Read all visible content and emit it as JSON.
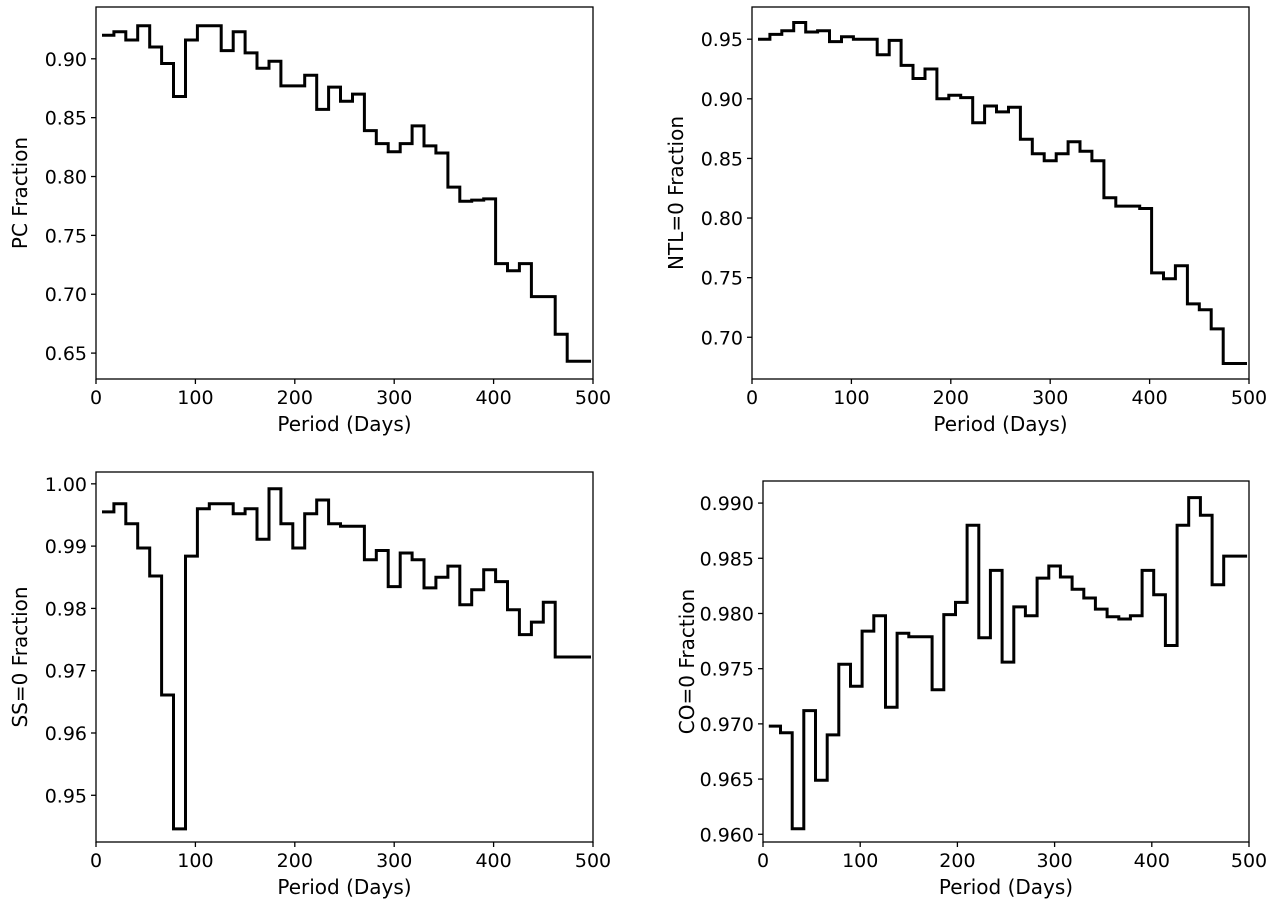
{
  "chart_data": [
    {
      "type": "line",
      "style": "step",
      "xlabel": "Period (Days)",
      "ylabel": "PC Fraction",
      "xlim": [
        0,
        500
      ],
      "ylim": [
        0.628,
        0.944
      ],
      "xticks": [
        "0",
        "100",
        "200",
        "300",
        "400",
        "500"
      ],
      "yticks": [
        "0.65",
        "0.70",
        "0.75",
        "0.80",
        "0.85",
        "0.90"
      ],
      "bin_edges": [
        6,
        18,
        30,
        42,
        54,
        66,
        78,
        90,
        102,
        114,
        126,
        138,
        150,
        162,
        174,
        186,
        198,
        210,
        222,
        234,
        246,
        258,
        270,
        282,
        294,
        306,
        318,
        330,
        342,
        354,
        366,
        378,
        390,
        402,
        414,
        426,
        438,
        450,
        462,
        474,
        486,
        498
      ],
      "values": [
        0.92,
        0.923,
        0.916,
        0.928,
        0.91,
        0.896,
        0.868,
        0.916,
        0.928,
        0.928,
        0.907,
        0.923,
        0.905,
        0.892,
        0.898,
        0.877,
        0.877,
        0.886,
        0.857,
        0.876,
        0.864,
        0.87,
        0.839,
        0.828,
        0.821,
        0.828,
        0.843,
        0.826,
        0.82,
        0.791,
        0.779,
        0.78,
        0.781,
        0.726,
        0.72,
        0.726,
        0.698,
        0.698,
        0.666,
        0.643,
        0.643
      ]
    },
    {
      "type": "line",
      "style": "step",
      "xlabel": "Period (Days)",
      "ylabel": "NTL=0 Fraction",
      "xlim": [
        0,
        500
      ],
      "ylim": [
        0.665,
        0.977
      ],
      "xticks": [
        "0",
        "100",
        "200",
        "300",
        "400",
        "500"
      ],
      "yticks": [
        "0.70",
        "0.75",
        "0.80",
        "0.85",
        "0.90",
        "0.95"
      ],
      "bin_edges": [
        6,
        18,
        30,
        42,
        54,
        66,
        78,
        90,
        102,
        114,
        126,
        138,
        150,
        162,
        174,
        186,
        198,
        210,
        222,
        234,
        246,
        258,
        270,
        282,
        294,
        306,
        318,
        330,
        342,
        354,
        366,
        378,
        390,
        402,
        414,
        426,
        438,
        450,
        462,
        474,
        486,
        498
      ],
      "values": [
        0.95,
        0.954,
        0.957,
        0.964,
        0.956,
        0.957,
        0.948,
        0.952,
        0.95,
        0.95,
        0.937,
        0.949,
        0.928,
        0.917,
        0.925,
        0.9,
        0.903,
        0.901,
        0.88,
        0.894,
        0.889,
        0.893,
        0.866,
        0.854,
        0.848,
        0.854,
        0.864,
        0.856,
        0.848,
        0.817,
        0.81,
        0.81,
        0.808,
        0.754,
        0.749,
        0.76,
        0.728,
        0.723,
        0.707,
        0.678,
        0.678
      ]
    },
    {
      "type": "line",
      "style": "step",
      "xlabel": "Period (Days)",
      "ylabel": "SS=0 Fraction",
      "xlim": [
        0,
        500
      ],
      "ylim": [
        0.9425,
        1.0019
      ],
      "xticks": [
        "0",
        "100",
        "200",
        "300",
        "400",
        "500"
      ],
      "yticks": [
        "0.95",
        "0.96",
        "0.97",
        "0.98",
        "0.99",
        "1.00"
      ],
      "bin_edges": [
        6,
        18,
        30,
        42,
        54,
        66,
        78,
        90,
        102,
        114,
        126,
        138,
        150,
        162,
        174,
        186,
        198,
        210,
        222,
        234,
        246,
        258,
        270,
        282,
        294,
        306,
        318,
        330,
        342,
        354,
        366,
        378,
        390,
        402,
        414,
        426,
        438,
        450,
        462,
        474,
        486,
        498
      ],
      "values": [
        0.9955,
        0.9968,
        0.9936,
        0.9897,
        0.9852,
        0.9661,
        0.9446,
        0.9884,
        0.996,
        0.9968,
        0.9968,
        0.9952,
        0.996,
        0.9911,
        0.9992,
        0.9936,
        0.9897,
        0.9952,
        0.9974,
        0.9936,
        0.9932,
        0.9932,
        0.9878,
        0.9893,
        0.9835,
        0.9889,
        0.9878,
        0.9833,
        0.985,
        0.9868,
        0.9806,
        0.983,
        0.9862,
        0.9843,
        0.9798,
        0.9758,
        0.9778,
        0.981,
        0.9722,
        0.9722,
        0.9722
      ]
    },
    {
      "type": "line",
      "style": "step",
      "xlabel": "Period (Days)",
      "ylabel": "CO=0 Fraction",
      "xlim": [
        0,
        500
      ],
      "ylim": [
        0.9593,
        0.992
      ],
      "xticks": [
        "0",
        "100",
        "200",
        "300",
        "400",
        "500"
      ],
      "yticks": [
        "0.960",
        "0.965",
        "0.970",
        "0.975",
        "0.980",
        "0.985",
        "0.990"
      ],
      "bin_edges": [
        6,
        18,
        30,
        42,
        54,
        66,
        78,
        90,
        102,
        114,
        126,
        138,
        150,
        162,
        174,
        186,
        198,
        210,
        222,
        234,
        246,
        258,
        270,
        282,
        294,
        306,
        318,
        330,
        342,
        354,
        366,
        378,
        390,
        402,
        414,
        426,
        438,
        450,
        462,
        474,
        486,
        498
      ],
      "values": [
        0.9698,
        0.9692,
        0.9605,
        0.9712,
        0.9649,
        0.969,
        0.9754,
        0.9734,
        0.9784,
        0.9798,
        0.9715,
        0.9782,
        0.9779,
        0.9779,
        0.9731,
        0.9799,
        0.981,
        0.988,
        0.9778,
        0.9839,
        0.9756,
        0.9806,
        0.9798,
        0.9832,
        0.9843,
        0.9833,
        0.9822,
        0.9814,
        0.9804,
        0.9797,
        0.9795,
        0.9798,
        0.9839,
        0.9817,
        0.9771,
        0.988,
        0.9905,
        0.9889,
        0.9826,
        0.9852,
        0.9852
      ]
    }
  ]
}
